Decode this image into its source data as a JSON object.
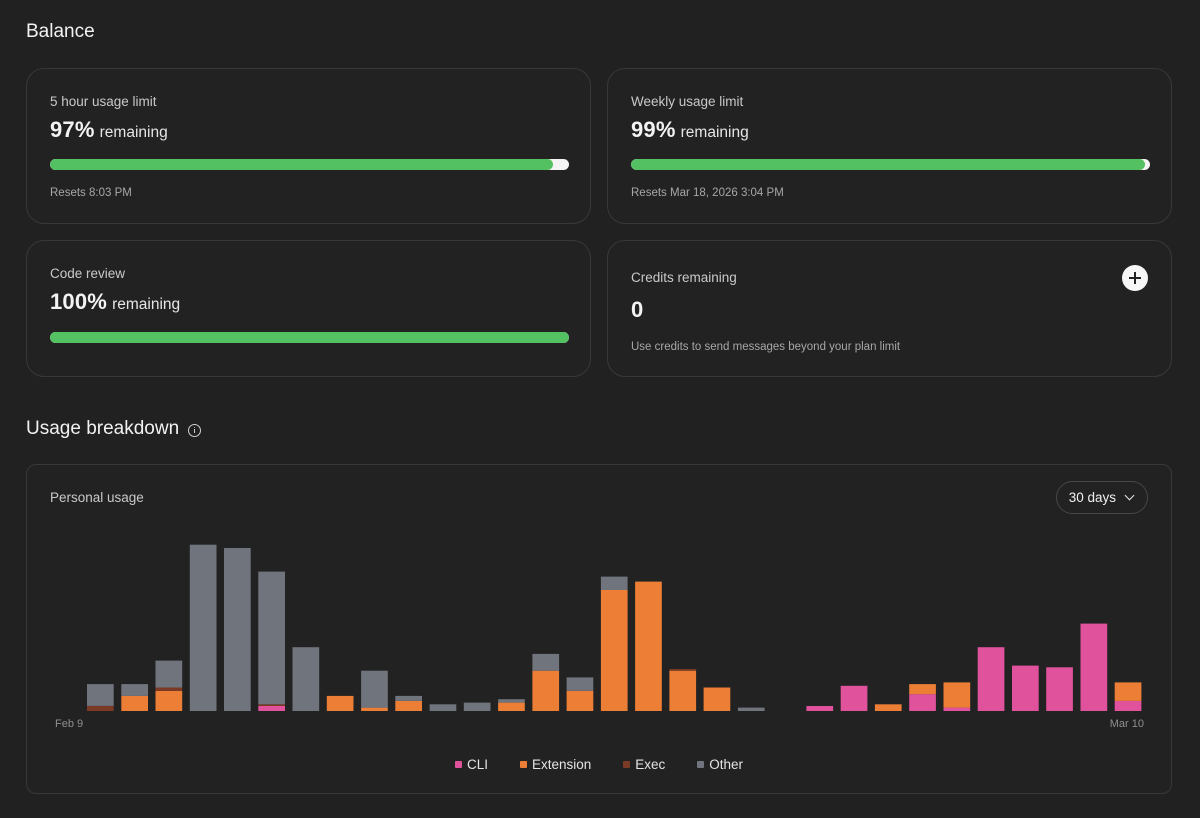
{
  "balance": {
    "title": "Balance",
    "five_hour": {
      "label": "5 hour usage limit",
      "percent": "97%",
      "suffix": "remaining",
      "fill": 0.97,
      "resets": "Resets 8:03 PM"
    },
    "weekly": {
      "label": "Weekly usage limit",
      "percent": "99%",
      "suffix": "remaining",
      "fill": 0.99,
      "resets": "Resets Mar 18, 2026 3:04 PM"
    },
    "code_review": {
      "label": "Code review",
      "percent": "100%",
      "suffix": "remaining",
      "fill": 1.0
    },
    "credits": {
      "label": "Credits remaining",
      "value": "0",
      "note": "Use credits to send messages beyond your plan limit",
      "add_icon": "plus-icon"
    }
  },
  "usage": {
    "title": "Usage breakdown",
    "info_icon": "info-icon",
    "panel_title": "Personal usage",
    "range": {
      "selected": "30 days",
      "icon": "chevron-down-icon"
    },
    "colors": {
      "CLI": "#e0529c",
      "Extension": "#ec7e35",
      "Exec": "#7a3a25",
      "Other": "#6f747d",
      "bar_green": "#53c161"
    }
  },
  "chart_data": {
    "type": "bar",
    "stacked": true,
    "x_tick_labels": [
      "Feb 9",
      "Mar 10"
    ],
    "ylim": [
      0,
      100
    ],
    "grid": false,
    "legend": "bottom-center",
    "series": [
      {
        "name": "CLI",
        "values": [
          0,
          0,
          0,
          0,
          0,
          3,
          0,
          0,
          0,
          0,
          0,
          0,
          0,
          0,
          0,
          0,
          0,
          0,
          0,
          0,
          0,
          3,
          15,
          0,
          10,
          2,
          38,
          27,
          26,
          52,
          6
        ]
      },
      {
        "name": "Extension",
        "values": [
          0,
          9,
          12,
          0,
          0,
          0,
          0,
          9,
          2,
          6,
          0,
          0,
          5,
          24,
          12,
          72,
          77,
          24,
          14,
          0,
          0,
          0,
          0,
          4,
          6,
          15,
          0,
          0,
          0,
          0,
          11
        ]
      },
      {
        "name": "Exec",
        "values": [
          3,
          0,
          2,
          0,
          0,
          1,
          0,
          0,
          0,
          0,
          0,
          0,
          0,
          0,
          0,
          0,
          0,
          1,
          0,
          0,
          0,
          0,
          0,
          0,
          0,
          0,
          0,
          0,
          0,
          0,
          0
        ]
      },
      {
        "name": "Other",
        "values": [
          13,
          7,
          16,
          99,
          97,
          79,
          38,
          0,
          22,
          3,
          4,
          5,
          2,
          10,
          8,
          8,
          0,
          0,
          0,
          2,
          0,
          0,
          0,
          0,
          0,
          0,
          0,
          0,
          0,
          0,
          0
        ]
      }
    ]
  }
}
